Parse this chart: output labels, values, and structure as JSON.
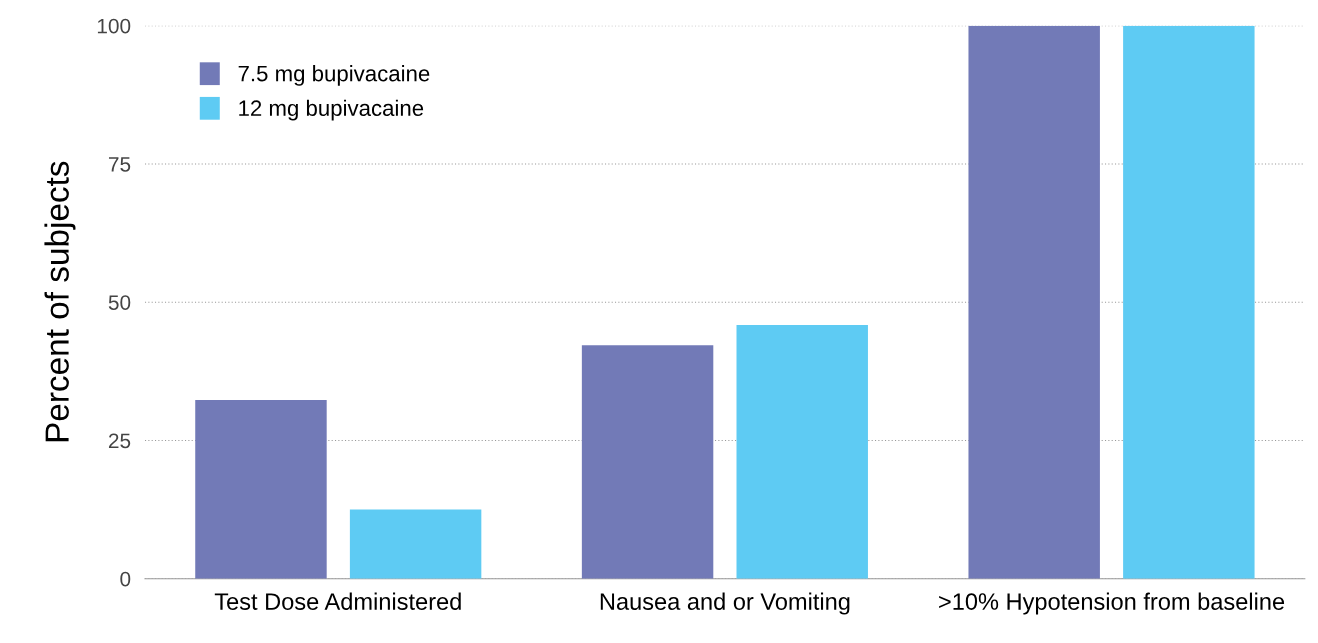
{
  "chart_data": {
    "type": "bar",
    "ylabel": "Percent of subjects",
    "categories": [
      "Test Dose Administered",
      "Nausea and or Vomiting",
      ">10% Hypotension from baseline"
    ],
    "series": [
      {
        "name": "7.5 mg bupivacaine",
        "color": "#727ab7",
        "values": [
          32.3,
          42.2,
          100
        ]
      },
      {
        "name": "12 mg bupivacaine",
        "color": "#5ecbf3",
        "values": [
          12.5,
          45.9,
          100
        ]
      }
    ],
    "ylim": [
      0,
      100
    ],
    "yticks": [
      0,
      25,
      50,
      75,
      100
    ],
    "grid": "y",
    "legend": "top left"
  }
}
